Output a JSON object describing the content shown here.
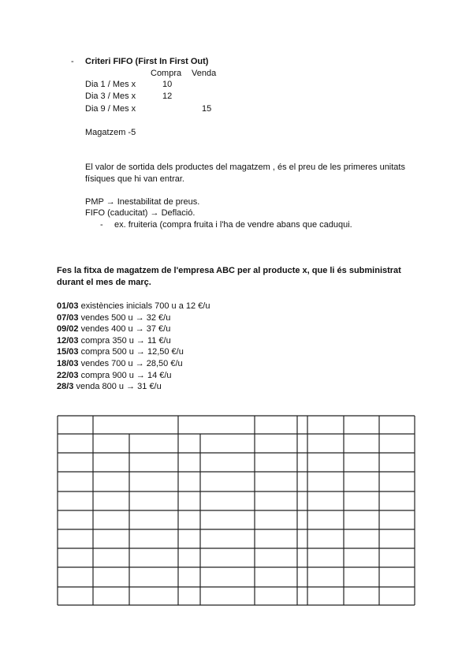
{
  "fifo": {
    "bullet": "-",
    "title": "Criteri FIFO (First In First Out)",
    "col_compra": "Compra",
    "col_venda": "Venda",
    "rows": [
      {
        "label": "Dia 1 / Mes x",
        "compra": "10",
        "venda": ""
      },
      {
        "label": "Dia 3 / Mes x",
        "compra": "12",
        "venda": ""
      },
      {
        "label": "Dia 9 / Mes x",
        "compra": "",
        "venda": "15"
      }
    ],
    "magatzem": "Magatzem -5",
    "valor_line1": "El valor de sortida dels productes del magatzem , és el preu de les primeres unitats",
    "valor_line2": "físiques que hi van entrar.",
    "pmp": "PMP → Inestabilitat de preus.",
    "fifo_line": "FIFO (caducitat) → Deflació.",
    "sub_bullet": "-",
    "example": "ex. fruiteria (compra fruita i l'ha de vendre abans que caduqui."
  },
  "exercise": {
    "prompt_line1": "Fes la fitxa de magatzem de l'empresa ABC per al producte x, que li és subministrat",
    "prompt_line2": "durant el mes de març.",
    "entries": [
      {
        "date": "01/03",
        "text": "existències inicials 700 u a 12 €/u"
      },
      {
        "date": "07/03",
        "text": "vendes 500 u → 32 €/u"
      },
      {
        "date": "09/02",
        "text": "vendes 400 u → 37 €/u"
      },
      {
        "date": "12/03",
        "text": "compra 350 u → 11 €/u"
      },
      {
        "date": "15/03",
        "text": "compra 500 u → 12,50 €/u"
      },
      {
        "date": "18/03",
        "text": "vendes 700 u → 28,50  €/u"
      },
      {
        "date": "22/03",
        "text": "compra 900 u → 14 €/u"
      },
      {
        "date": "28/3",
        "text": "venda 800 u → 31 €/u"
      }
    ]
  }
}
